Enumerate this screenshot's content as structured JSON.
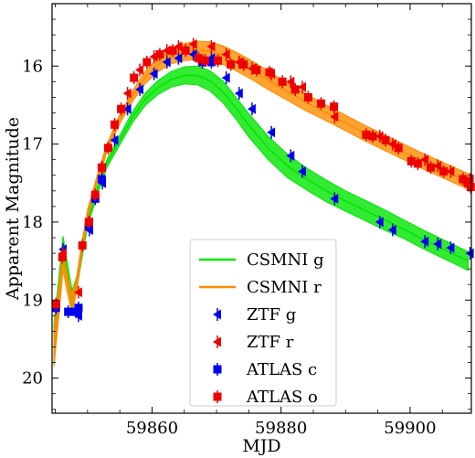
{
  "chart_data": {
    "type": "scatter",
    "title": "",
    "xlabel": "MJD",
    "ylabel": "Apparent Magnitude",
    "xlim": [
      59844.5,
      59909.5
    ],
    "ylim": [
      20.45,
      15.2
    ],
    "y_inverted": true,
    "x_ticks": [
      59860,
      59880,
      59900
    ],
    "y_ticks": [
      16,
      17,
      18,
      19,
      20
    ],
    "grid": false,
    "legend_position": "lower center",
    "models": [
      {
        "name": "CSMNI g",
        "color": "#00e600",
        "x": [
          59844.8,
          59845.5,
          59846.2,
          59846.9,
          59847.6,
          59848.3,
          59849.0,
          59850.0,
          59851.5,
          59853.0,
          59855.0,
          59857.0,
          59859.0,
          59861.0,
          59863.0,
          59865.0,
          59867.0,
          59869.0,
          59871.0,
          59873.0,
          59875.0,
          59878.0,
          59881.0,
          59884.0,
          59887.0,
          59890.0,
          59893.0,
          59896.0,
          59899.0,
          59902.0,
          59905.0,
          59909.0
        ],
        "center": [
          19.55,
          18.95,
          18.3,
          18.65,
          19.0,
          18.8,
          18.45,
          18.0,
          17.6,
          17.25,
          16.95,
          16.65,
          16.42,
          16.27,
          16.17,
          16.12,
          16.12,
          16.19,
          16.33,
          16.54,
          16.76,
          17.05,
          17.28,
          17.45,
          17.6,
          17.73,
          17.85,
          17.97,
          18.09,
          18.22,
          18.34,
          18.5
        ],
        "half_width": [
          0.25,
          0.2,
          0.12,
          0.12,
          0.12,
          0.1,
          0.08,
          0.06,
          0.05,
          0.05,
          0.06,
          0.07,
          0.08,
          0.09,
          0.1,
          0.11,
          0.12,
          0.13,
          0.14,
          0.14,
          0.15,
          0.15,
          0.15,
          0.14,
          0.14,
          0.13,
          0.13,
          0.13,
          0.12,
          0.12,
          0.12,
          0.12
        ]
      },
      {
        "name": "CSMNI r",
        "color": "#ff8c00",
        "x": [
          59844.8,
          59845.5,
          59846.2,
          59846.9,
          59847.6,
          59848.3,
          59849.0,
          59850.0,
          59851.5,
          59853.0,
          59855.0,
          59857.0,
          59859.0,
          59861.0,
          59863.0,
          59865.0,
          59867.0,
          59869.0,
          59871.0,
          59873.0,
          59875.0,
          59878.0,
          59881.0,
          59884.0,
          59887.0,
          59890.0,
          59893.0,
          59896.0,
          59899.0,
          59902.0,
          59905.0,
          59909.0
        ],
        "center": [
          19.6,
          19.05,
          18.5,
          18.8,
          19.05,
          18.8,
          18.4,
          17.9,
          17.45,
          17.05,
          16.68,
          16.38,
          16.14,
          15.98,
          15.87,
          15.82,
          15.8,
          15.81,
          15.86,
          15.94,
          16.03,
          16.18,
          16.33,
          16.47,
          16.6,
          16.73,
          16.86,
          16.98,
          17.1,
          17.22,
          17.33,
          17.48
        ],
        "half_width": [
          0.25,
          0.2,
          0.12,
          0.12,
          0.12,
          0.1,
          0.08,
          0.06,
          0.05,
          0.05,
          0.06,
          0.07,
          0.08,
          0.09,
          0.1,
          0.11,
          0.12,
          0.12,
          0.12,
          0.12,
          0.12,
          0.12,
          0.11,
          0.11,
          0.1,
          0.1,
          0.1,
          0.1,
          0.1,
          0.1,
          0.1,
          0.1
        ]
      }
    ],
    "series": [
      {
        "name": "ZTF g",
        "color": "#0000ee",
        "marker": "left-triangle",
        "points": [
          [
            59846.2,
            18.35
          ],
          [
            59848.6,
            19.2
          ],
          [
            59850.3,
            18.1
          ],
          [
            59852.3,
            17.5
          ],
          [
            59854.2,
            16.95
          ],
          [
            59856.2,
            16.55
          ],
          [
            59858.1,
            16.3
          ],
          [
            59860.3,
            16.1
          ],
          [
            59862.3,
            15.95
          ],
          [
            59864.1,
            15.9
          ],
          [
            59866.4,
            15.85
          ],
          [
            59869.2,
            15.9
          ],
          [
            59871.5,
            16.15
          ],
          [
            59873.5,
            16.35
          ],
          [
            59875.5,
            16.55
          ],
          [
            59878.5,
            16.85
          ],
          [
            59881.5,
            17.15
          ],
          [
            59883.3,
            17.35
          ],
          [
            59888.3,
            17.7
          ],
          [
            59895.3,
            18.0
          ],
          [
            59897.3,
            18.1
          ],
          [
            59902.3,
            18.25
          ],
          [
            59904.3,
            18.28
          ],
          [
            59906.3,
            18.33
          ],
          [
            59909.3,
            18.4
          ]
        ]
      },
      {
        "name": "ZTF r",
        "color": "#ee0000",
        "marker": "left-triangle",
        "points": [
          [
            59846.2,
            18.4
          ],
          [
            59848.6,
            18.9
          ],
          [
            59850.3,
            18.0
          ],
          [
            59852.3,
            17.3
          ],
          [
            59854.2,
            16.75
          ],
          [
            59856.2,
            16.35
          ],
          [
            59858.1,
            16.05
          ],
          [
            59860.3,
            15.88
          ],
          [
            59862.3,
            15.8
          ],
          [
            59864.1,
            15.75
          ],
          [
            59866.4,
            15.72
          ],
          [
            59869.2,
            15.75
          ],
          [
            59871.5,
            15.85
          ],
          [
            59873.5,
            15.95
          ],
          [
            59875.5,
            16.03
          ],
          [
            59878.5,
            16.1
          ],
          [
            59881.5,
            16.2
          ],
          [
            59883.3,
            16.27
          ],
          [
            59888.3,
            16.65
          ],
          [
            59895.3,
            16.9
          ],
          [
            59897.3,
            17.0
          ],
          [
            59902.3,
            17.2
          ],
          [
            59904.3,
            17.28
          ],
          [
            59906.3,
            17.35
          ],
          [
            59909.3,
            17.45
          ]
        ]
      },
      {
        "name": "ATLAS c",
        "color": "#0000ee",
        "marker": "square",
        "points": [
          [
            59845.1,
            19.1
          ],
          [
            59847.0,
            19.15
          ],
          [
            59848.2,
            19.15
          ],
          [
            59848.6,
            19.1
          ],
          [
            59850.2,
            18.05
          ],
          [
            59851.2,
            17.7
          ],
          [
            59852.2,
            17.45
          ],
          [
            59867.8,
            15.95
          ],
          [
            59869.2,
            15.95
          ]
        ]
      },
      {
        "name": "ATLAS o",
        "color": "#ee0000",
        "marker": "square",
        "points": [
          [
            59845.1,
            19.05
          ],
          [
            59846.1,
            18.45
          ],
          [
            59849.2,
            18.3
          ],
          [
            59850.2,
            18.0
          ],
          [
            59851.2,
            17.65
          ],
          [
            59852.2,
            17.3
          ],
          [
            59853.2,
            17.05
          ],
          [
            59854.2,
            16.75
          ],
          [
            59855.2,
            16.55
          ],
          [
            59857.2,
            16.15
          ],
          [
            59859.2,
            15.95
          ],
          [
            59861.2,
            15.85
          ],
          [
            59863.2,
            15.8
          ],
          [
            59865.2,
            15.8
          ],
          [
            59867.2,
            15.9
          ],
          [
            59868.2,
            15.93
          ],
          [
            59870.2,
            15.93
          ],
          [
            59872.2,
            15.98
          ],
          [
            59874.2,
            15.98
          ],
          [
            59876.2,
            16.05
          ],
          [
            59878.2,
            16.08
          ],
          [
            59880.2,
            16.2
          ],
          [
            59882.2,
            16.3
          ],
          [
            59884.2,
            16.4
          ],
          [
            59886.2,
            16.48
          ],
          [
            59888.2,
            16.52
          ],
          [
            59893.2,
            16.88
          ],
          [
            59894.2,
            16.9
          ],
          [
            59896.2,
            16.95
          ],
          [
            59898.2,
            17.05
          ],
          [
            59900.2,
            17.22
          ],
          [
            59901.2,
            17.25
          ],
          [
            59903.2,
            17.3
          ],
          [
            59905.2,
            17.35
          ],
          [
            59908.2,
            17.45
          ],
          [
            59909.0,
            17.5
          ],
          [
            59909.4,
            17.55
          ]
        ]
      }
    ]
  }
}
